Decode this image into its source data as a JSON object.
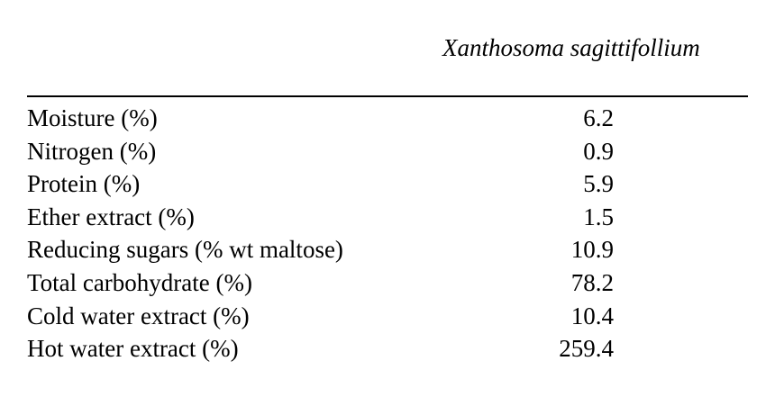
{
  "table": {
    "column_header": "Xanthosoma sagittifollium",
    "rows": [
      {
        "label": "Moisture (%)",
        "value": "6.2"
      },
      {
        "label": "Nitrogen (%)",
        "value": "0.9"
      },
      {
        "label": "Protein (%)",
        "value": "5.9"
      },
      {
        "label": "Ether extract (%)",
        "value": "1.5"
      },
      {
        "label": "Reducing sugars (% wt maltose)",
        "value": "10.9"
      },
      {
        "label": "Total carbohydrate (%)",
        "value": "78.2"
      },
      {
        "label": "Cold water extract (%)",
        "value": "10.4"
      },
      {
        "label": "Hot water extract (%)",
        "value": "259.4"
      }
    ]
  },
  "colors": {
    "background": "#ffffff",
    "text": "#000000"
  }
}
